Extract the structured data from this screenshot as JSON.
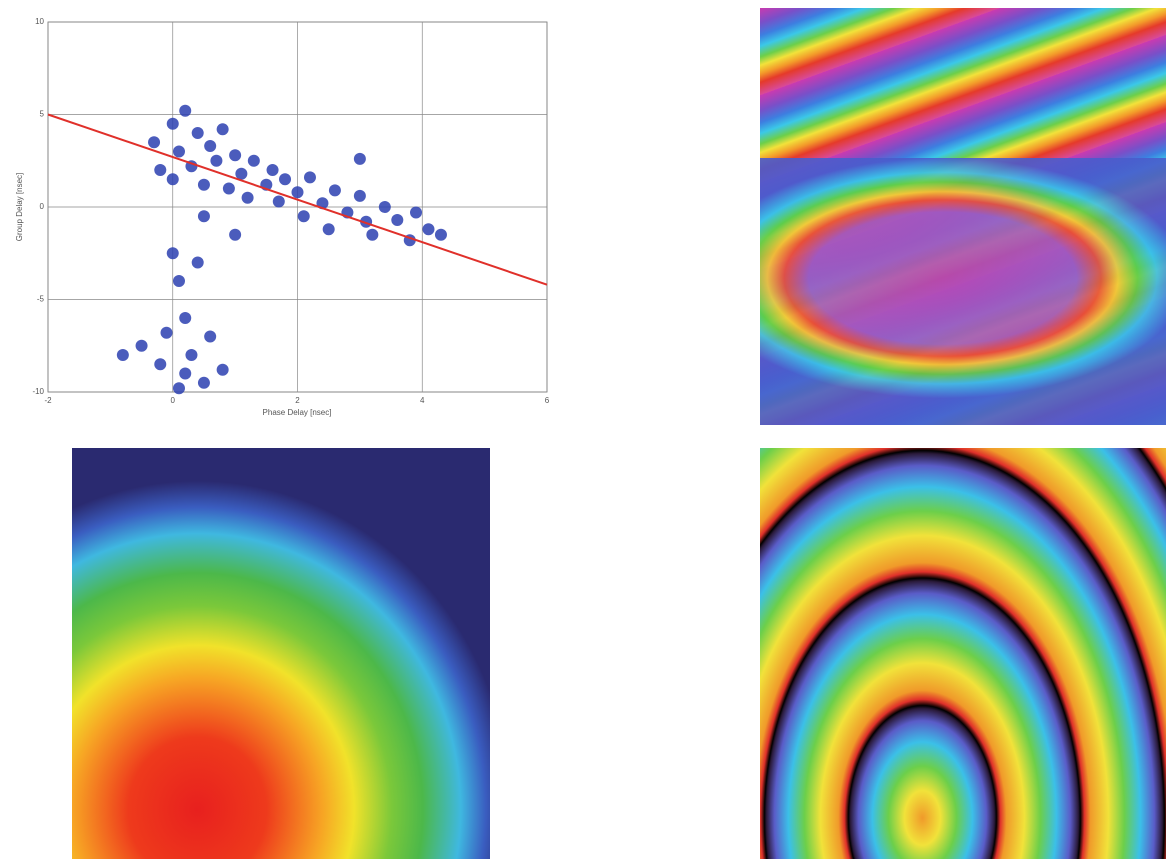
{
  "chart_data": {
    "type": "scatter",
    "x_label": "Phase Delay [nsec]",
    "y_label": "Group Delay [nsec]",
    "xlim": [
      -2,
      6
    ],
    "ylim": [
      -10,
      10
    ],
    "xticks": [
      -2,
      0,
      2,
      4,
      6
    ],
    "yticks": [
      -10,
      -5,
      0,
      5,
      10
    ],
    "grid": true,
    "series": [
      {
        "color": "#2b3fb0",
        "x": [
          -0.3,
          -0.2,
          0,
          0,
          0.1,
          0.2,
          0.3,
          0.4,
          0.5,
          0.6,
          0.7,
          0.8,
          0.9,
          1.0,
          1.1,
          1.2,
          1.3,
          1.5,
          1.6,
          1.7,
          1.8,
          2.0,
          2.1,
          2.2,
          2.4,
          2.5,
          2.6,
          2.8,
          3.0,
          3.1,
          3.2,
          3.4,
          3.6,
          3.8,
          3.9,
          4.1,
          4.3,
          3.0,
          1.0,
          0.5,
          0.0,
          0.1,
          0.2,
          0.3,
          -0.2,
          0.5,
          0.1,
          -0.5,
          0.6,
          0.4,
          -0.1,
          0.8,
          -0.8,
          0.2
        ],
        "values": [
          3.5,
          2.0,
          4.5,
          1.5,
          3.0,
          5.2,
          2.2,
          4.0,
          1.2,
          3.3,
          2.5,
          4.2,
          1.0,
          2.8,
          1.8,
          0.5,
          2.5,
          1.2,
          2.0,
          0.3,
          1.5,
          0.8,
          -0.5,
          1.6,
          0.2,
          -1.2,
          0.9,
          -0.3,
          0.6,
          -0.8,
          -1.5,
          0.0,
          -0.7,
          -1.8,
          -0.3,
          -1.2,
          -1.5,
          2.6,
          -1.5,
          -0.5,
          -2.5,
          -4.0,
          -6.0,
          -8.0,
          -8.5,
          -9.5,
          -9.8,
          -7.5,
          -7.0,
          -3.0,
          -6.8,
          -8.8,
          -8.0,
          -9.0
        ]
      },
      {
        "color": "#e0302a",
        "line": true,
        "x": [
          -2,
          6
        ],
        "values": [
          5,
          -4.2
        ]
      }
    ]
  }
}
